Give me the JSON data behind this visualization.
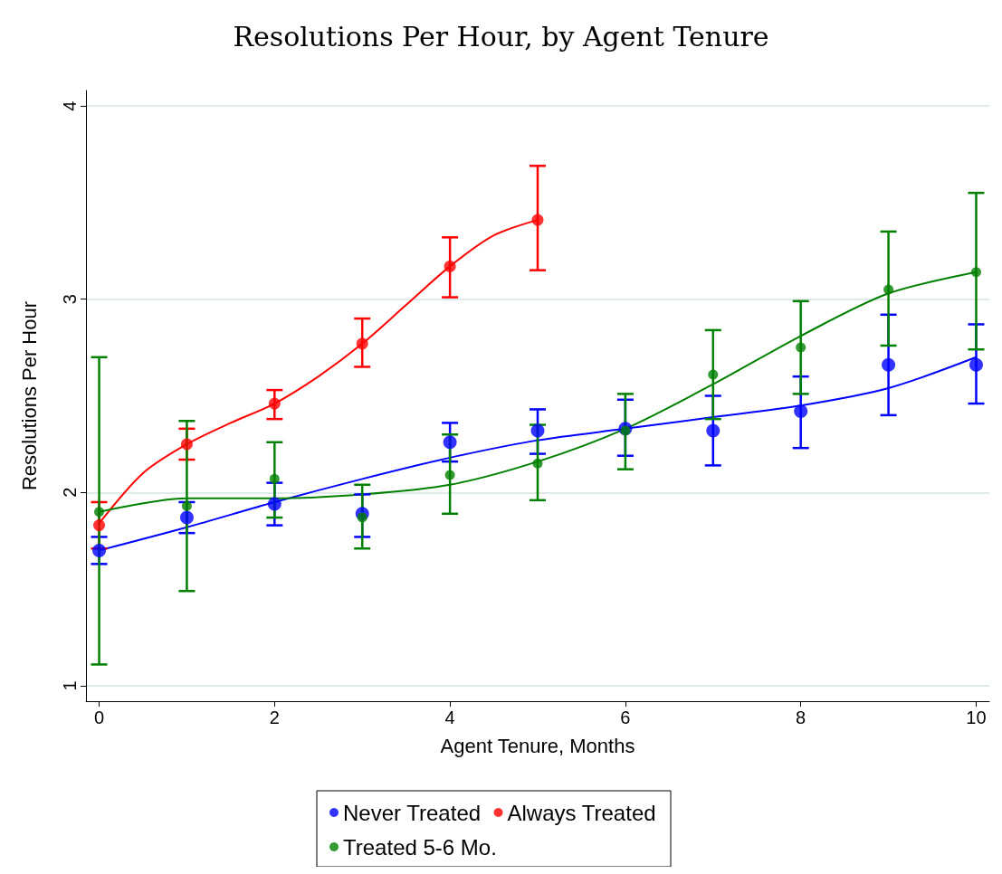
{
  "chart_data": {
    "type": "scatter",
    "title": "Resolutions Per Hour, by Agent Tenure",
    "xlabel": "Agent Tenure, Months",
    "ylabel": "Resolutions Per Hour",
    "xlim": [
      -0.15,
      10.15
    ],
    "xticks": [
      0,
      2,
      4,
      6,
      8,
      10
    ],
    "ylim": [
      0.92,
      4.08
    ],
    "yticks": [
      1,
      2,
      3,
      4
    ],
    "grid": "y",
    "legend": "bottom",
    "marker": "circle",
    "series": [
      {
        "type": "line",
        "marker": "none",
        "color": "#0000ff",
        "x": [
          0,
          1,
          2,
          3,
          4,
          5,
          6,
          7,
          8,
          9,
          10
        ],
        "values": [
          1.7,
          1.82,
          1.95,
          2.07,
          2.18,
          2.27,
          2.33,
          2.39,
          2.45,
          2.54,
          2.7
        ]
      },
      {
        "type": "line",
        "marker": "none",
        "color": "#ff0000",
        "x": [
          0,
          0.5,
          1,
          1.5,
          2,
          2.5,
          3,
          3.5,
          4,
          4.5,
          5
        ],
        "values": [
          1.84,
          2.1,
          2.25,
          2.36,
          2.46,
          2.6,
          2.77,
          2.97,
          3.17,
          3.33,
          3.41
        ]
      },
      {
        "type": "line",
        "marker": "none",
        "color": "#008000",
        "x": [
          0,
          1,
          2,
          3,
          4,
          5,
          6,
          7,
          8,
          9,
          10
        ],
        "values": [
          1.9,
          1.97,
          1.97,
          1.99,
          2.04,
          2.16,
          2.33,
          2.56,
          2.81,
          3.03,
          3.14
        ]
      },
      {
        "name": "Never Treated",
        "color": "#0000ff",
        "x": [
          0,
          1,
          2,
          3,
          4,
          5,
          6,
          7,
          8,
          9,
          10
        ],
        "values": [
          1.7,
          1.87,
          1.94,
          1.89,
          2.26,
          2.32,
          2.33,
          2.32,
          2.42,
          2.66,
          2.66
        ],
        "errors": [
          [
            1.63,
            1.77
          ],
          [
            1.79,
            1.95
          ],
          [
            1.83,
            2.05
          ],
          [
            1.77,
            1.99
          ],
          [
            2.16,
            2.36
          ],
          [
            2.2,
            2.43
          ],
          [
            2.19,
            2.48
          ],
          [
            2.14,
            2.5
          ],
          [
            2.23,
            2.6
          ],
          [
            2.4,
            2.92
          ],
          [
            2.46,
            2.87
          ]
        ]
      },
      {
        "name": "Always Treated",
        "color": "#ff0000",
        "x": [
          0,
          1,
          2,
          3,
          4,
          5
        ],
        "values": [
          1.83,
          2.25,
          2.46,
          2.77,
          3.17,
          3.41
        ],
        "errors": [
          [
            1.71,
            1.95
          ],
          [
            2.17,
            2.33
          ],
          [
            2.38,
            2.53
          ],
          [
            2.65,
            2.9
          ],
          [
            3.01,
            3.32
          ],
          [
            3.15,
            3.69
          ]
        ]
      },
      {
        "name": "Treated 5-6 Mo.",
        "color": "#008000",
        "x": [
          0,
          1,
          2,
          3,
          4,
          5,
          6,
          7,
          8,
          9,
          10
        ],
        "values": [
          1.9,
          1.93,
          2.07,
          1.87,
          2.09,
          2.15,
          2.32,
          2.61,
          2.75,
          3.05,
          3.14
        ],
        "errors": [
          [
            1.11,
            2.7
          ],
          [
            1.49,
            2.37
          ],
          [
            1.87,
            2.26
          ],
          [
            1.71,
            2.04
          ],
          [
            1.89,
            2.3
          ],
          [
            1.96,
            2.35
          ],
          [
            2.12,
            2.51
          ],
          [
            2.38,
            2.84
          ],
          [
            2.51,
            2.99
          ],
          [
            2.76,
            3.35
          ],
          [
            2.74,
            3.55
          ]
        ]
      }
    ]
  }
}
